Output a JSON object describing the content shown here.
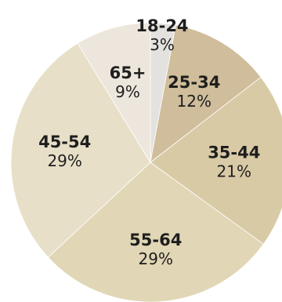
{
  "chart_data": {
    "type": "pie",
    "title": "",
    "slices": [
      {
        "label": "18-24",
        "value_text": "3%",
        "value": 3,
        "color": "#e4e2df"
      },
      {
        "label": "25-34",
        "value_text": "12%",
        "value": 12,
        "color": "#cfbd9b"
      },
      {
        "label": "35-44",
        "value_text": "21%",
        "value": 21,
        "color": "#d9caa6"
      },
      {
        "label": "55-64",
        "value_text": "29%",
        "value": 29,
        "color": "#e1d6b5"
      },
      {
        "label": "45-54",
        "value_text": "29%",
        "value": 29,
        "color": "#e7dfc8"
      },
      {
        "label": "65+",
        "value_text": "9%",
        "value": 9,
        "color": "#ede6dc"
      }
    ],
    "start": "top",
    "direction": "clockwise"
  }
}
